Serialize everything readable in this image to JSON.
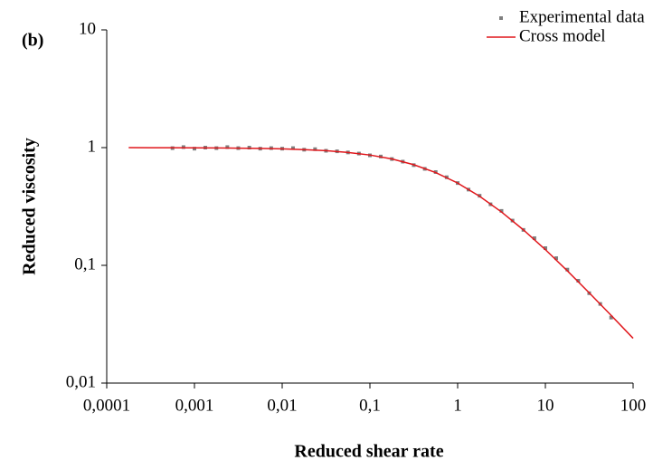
{
  "chart_data": {
    "type": "scatter-line",
    "title": "(b)",
    "x_label": "Reduced shear rate",
    "y_label": "Reduced viscosity",
    "log_x": true,
    "log_y": true,
    "grid": false,
    "legend": "top-right",
    "xlim": [
      0.0001,
      100
    ],
    "ylim": [
      0.01,
      10
    ],
    "xticks": [
      {
        "value": 0.0001,
        "label": "0,0001"
      },
      {
        "value": 0.001,
        "label": "0,001"
      },
      {
        "value": 0.01,
        "label": "0,01"
      },
      {
        "value": 0.1,
        "label": "0,1"
      },
      1,
      10,
      100
    ],
    "yticks": [
      {
        "value": 0.01,
        "label": "0,01"
      },
      {
        "value": 0.1,
        "label": "0,1"
      },
      1,
      10
    ],
    "series": [
      {
        "name": "Experimental data",
        "kind": "scatter",
        "color": "#7f7f7f",
        "x": [
          0.000562,
          0.00075,
          0.001,
          0.00133,
          0.00178,
          0.00237,
          0.00316,
          0.00422,
          0.00562,
          0.0075,
          0.01,
          0.0133,
          0.0178,
          0.0237,
          0.0316,
          0.0422,
          0.0562,
          0.075,
          0.1,
          0.133,
          0.178,
          0.237,
          0.316,
          0.422,
          0.562,
          0.75,
          1,
          1.33,
          1.78,
          2.37,
          3.16,
          4.22,
          5.62,
          7.5,
          10,
          13.3,
          17.8,
          23.7,
          31.6,
          42.2,
          56.2
        ],
        "values": [
          0.99,
          1.01,
          0.98,
          1.0,
          0.99,
          1.01,
          0.99,
          1.0,
          0.98,
          0.99,
          0.98,
          0.99,
          0.96,
          0.97,
          0.94,
          0.93,
          0.91,
          0.89,
          0.86,
          0.84,
          0.8,
          0.76,
          0.71,
          0.66,
          0.62,
          0.56,
          0.5,
          0.44,
          0.39,
          0.33,
          0.29,
          0.24,
          0.2,
          0.17,
          0.14,
          0.115,
          0.092,
          0.074,
          0.058,
          0.047,
          0.036
        ]
      },
      {
        "name": "Cross model",
        "kind": "line",
        "color": "#e0161b",
        "x": [
          0.000178,
          0.000316,
          0.000562,
          0.001,
          0.00178,
          0.00316,
          0.00562,
          0.01,
          0.0178,
          0.0316,
          0.0562,
          0.1,
          0.178,
          0.316,
          0.562,
          1,
          1.78,
          3.16,
          5.62,
          10,
          17.8,
          31.6,
          56.2,
          100
        ],
        "values": [
          0.999,
          0.998,
          0.998,
          0.996,
          0.994,
          0.99,
          0.985,
          0.976,
          0.962,
          0.942,
          0.91,
          0.865,
          0.801,
          0.716,
          0.614,
          0.5,
          0.386,
          0.284,
          0.2,
          0.136,
          0.0898,
          0.0584,
          0.0376,
          0.024
        ]
      }
    ]
  }
}
